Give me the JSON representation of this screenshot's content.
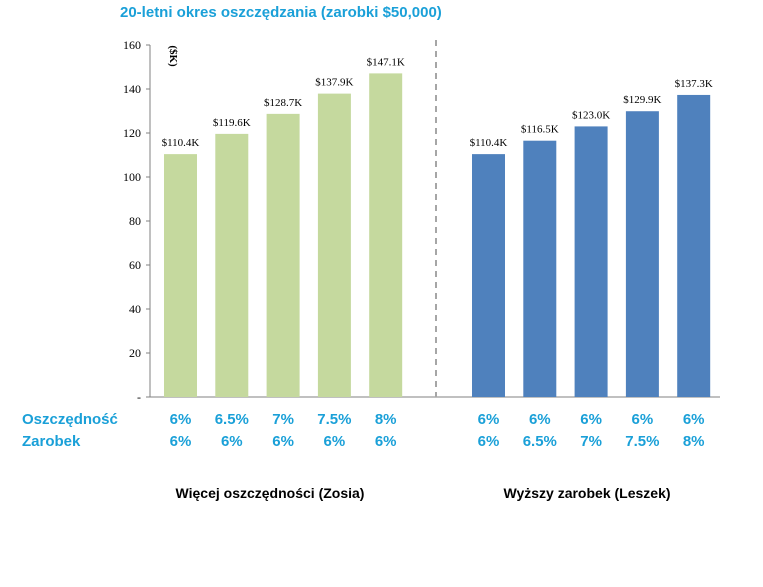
{
  "chart_data": {
    "type": "bar",
    "title": "20-letni okres oszczędzania (zarobki $50,000)",
    "unit_label": "($K)",
    "ylim": [
      0,
      160
    ],
    "yticks": [
      "-",
      "20",
      "40",
      "60",
      "80",
      "100",
      "120",
      "140",
      "160"
    ],
    "groups": [
      {
        "name": "Więcej oszczędności (Zosia)",
        "color": "#c5d99e",
        "values": [
          110.4,
          119.6,
          128.7,
          137.9,
          147.1
        ],
        "labels": [
          "$110.4K",
          "$119.6K",
          "$128.7K",
          "$137.9K",
          "$147.1K"
        ],
        "savings": [
          "6%",
          "6.5%",
          "7%",
          "7.5%",
          "8%"
        ],
        "earnings": [
          "6%",
          "6%",
          "6%",
          "6%",
          "6%"
        ]
      },
      {
        "name": "Wyższy zarobek (Leszek)",
        "color": "#4f81bd",
        "values": [
          110.4,
          116.5,
          123.0,
          129.9,
          137.3
        ],
        "labels": [
          "$110.4K",
          "$116.5K",
          "$123.0K",
          "$129.9K",
          "$137.3K"
        ],
        "savings": [
          "6%",
          "6%",
          "6%",
          "6%",
          "6%"
        ],
        "earnings": [
          "6%",
          "6.5%",
          "7%",
          "7.5%",
          "8%"
        ]
      }
    ],
    "row_labels": {
      "savings": "Oszczędność",
      "earnings": "Zarobek"
    }
  }
}
